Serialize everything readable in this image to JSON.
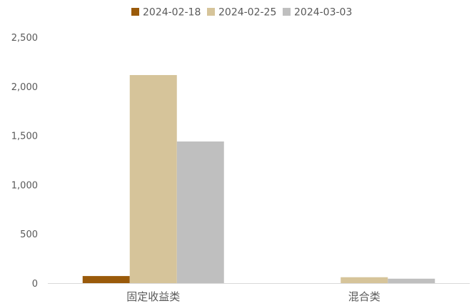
{
  "chart_data": {
    "type": "bar",
    "categories": [
      "固定收益类",
      "混合类"
    ],
    "series": [
      {
        "name": "2024-02-18",
        "color": "#9a5a0a",
        "values": [
          72,
          0
        ]
      },
      {
        "name": "2024-02-25",
        "color": "#d6c49a",
        "values": [
          2115,
          60
        ]
      },
      {
        "name": "2024-03-03",
        "color": "#bfbfbf",
        "values": [
          1440,
          45
        ]
      }
    ],
    "title": "",
    "xlabel": "",
    "ylabel": "",
    "ylim": [
      0,
      2500
    ],
    "yticks": [
      0,
      500,
      1000,
      1500,
      2000,
      2500
    ],
    "ytick_labels": [
      "0",
      "500",
      "1,000",
      "1,500",
      "2,000",
      "2,500"
    ],
    "grid": false,
    "legend_position": "top"
  }
}
